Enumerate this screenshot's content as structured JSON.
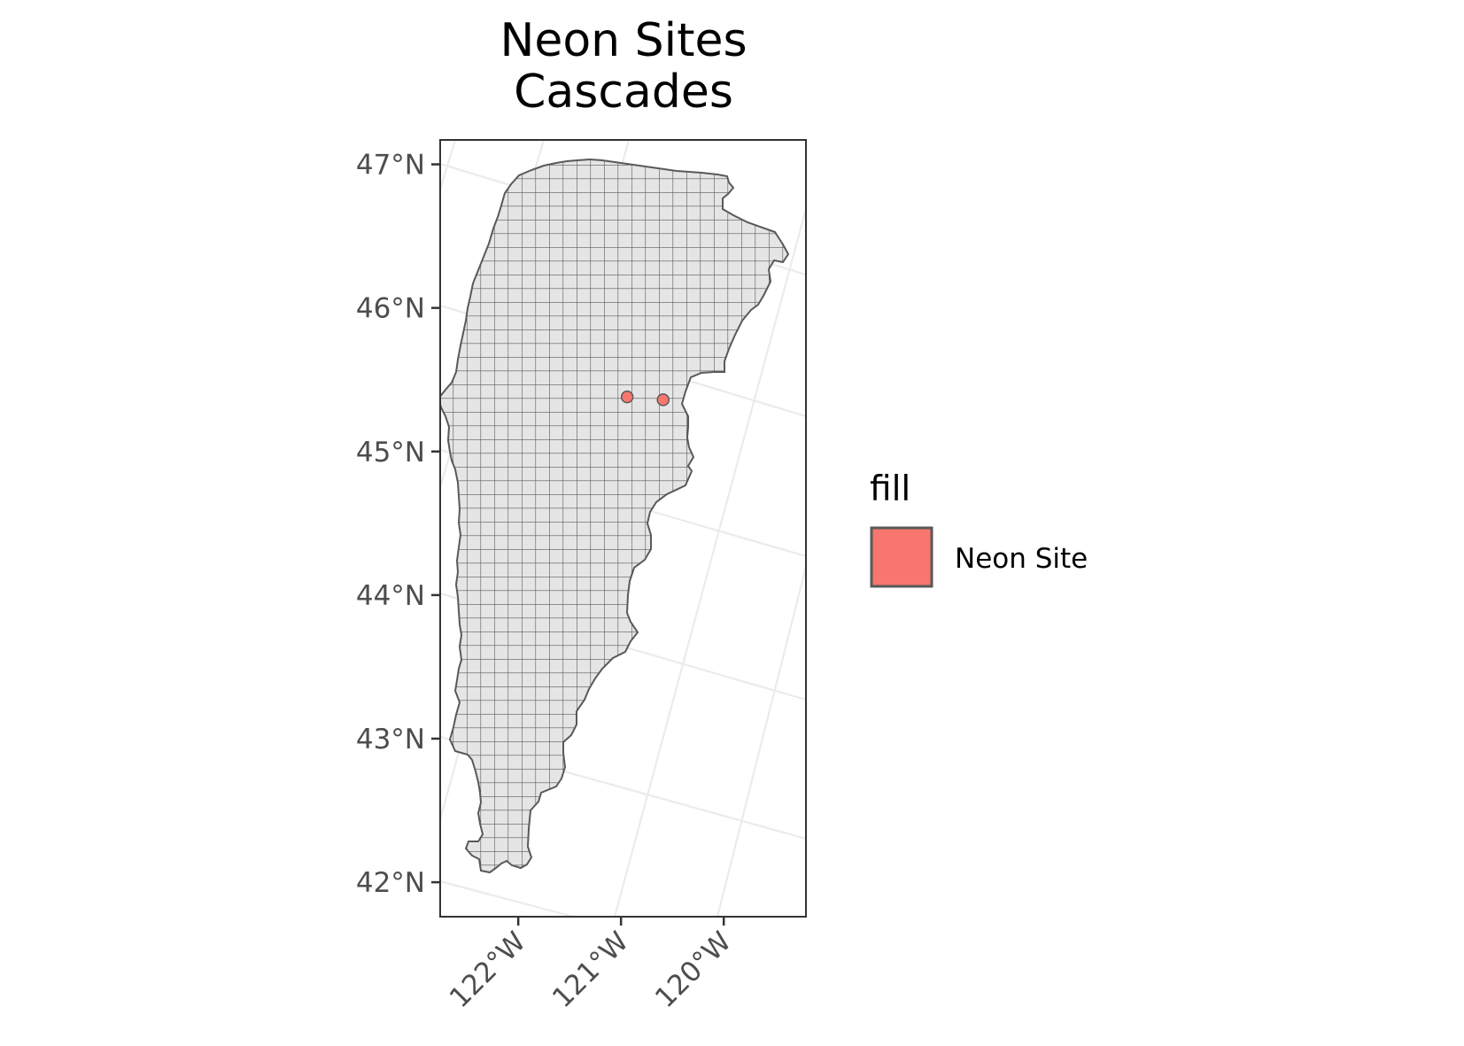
{
  "chart_data": {
    "type": "map",
    "title_lines": [
      "Neon Sites",
      "Cascades"
    ],
    "xlabel": "",
    "ylabel": "",
    "x_ticks": [
      {
        "lon": -122,
        "label": "122°W"
      },
      {
        "lon": -121,
        "label": "121°W"
      },
      {
        "lon": -120,
        "label": "120°W"
      }
    ],
    "y_ticks": [
      {
        "lat": 47,
        "label": "47°N"
      },
      {
        "lat": 46,
        "label": "46°N"
      },
      {
        "lat": 45,
        "label": "45°N"
      },
      {
        "lat": 44,
        "label": "44°N"
      },
      {
        "lat": 43,
        "label": "43°N"
      },
      {
        "lat": 42,
        "label": "42°N"
      }
    ],
    "xlim": [
      -122.76,
      -119.2
    ],
    "ylim": [
      41.76,
      47.17
    ],
    "grid": true,
    "region_fill": "#e5e5e5",
    "region_stroke": "#595959",
    "point_fill": "#f8766d",
    "points": [
      {
        "lon": -120.94,
        "lat": 45.38
      },
      {
        "lon": -120.59,
        "lat": 45.36
      }
    ],
    "legend": {
      "title": "fill",
      "position": "right",
      "entries": [
        {
          "label": "Neon Site",
          "color": "#f8766d"
        }
      ]
    }
  }
}
